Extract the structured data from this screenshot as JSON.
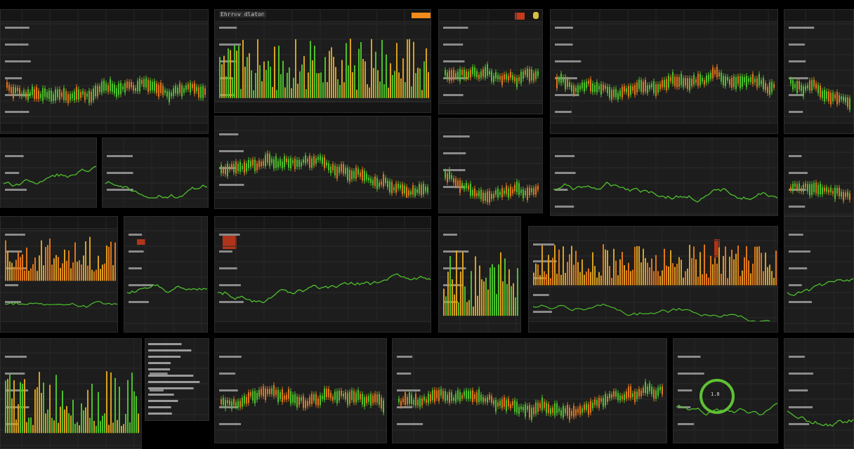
{
  "colors": {
    "background": "#000000",
    "panel": "#1d1d1d",
    "green": "#4ebf2c",
    "orange": "#e0761c",
    "yellow": "#d9a020",
    "cyan": "#2aa5c8",
    "red": "#b0341a"
  },
  "header": {
    "title_label": "Ehrrov dlaton"
  },
  "ring": {
    "label": "1.8"
  }
}
